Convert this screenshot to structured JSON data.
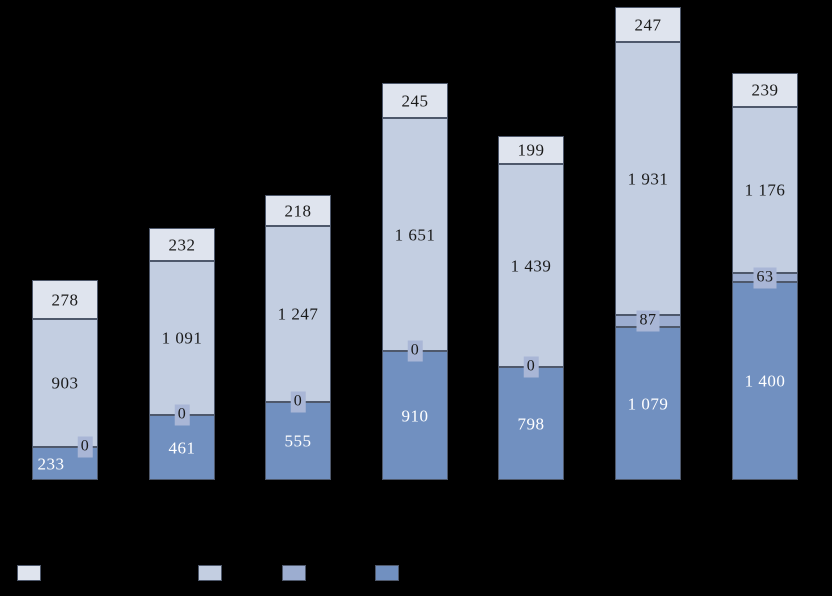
{
  "chart_data": {
    "type": "bar",
    "stacked": true,
    "orientation": "vertical",
    "title": "",
    "background_color": "#000000",
    "segment_border_color": "#4e586b",
    "bar_count": 7,
    "value_format": "space-thousands",
    "series": [
      {
        "id": "series-1-bottom",
        "color": "#7190c0",
        "label_color": "#ffffff",
        "values": [
          233,
          461,
          555,
          910,
          798,
          1079,
          1400
        ],
        "labels": [
          "233",
          "461",
          "555",
          "910",
          "798",
          "1 079",
          "1 400"
        ]
      },
      {
        "id": "series-2-thin",
        "color": "#9cadd0",
        "label_color": "#1a1a1a",
        "label_bg": "#a9b6d6",
        "boxed_labels": true,
        "values": [
          0,
          0,
          0,
          0,
          0,
          87,
          63
        ],
        "labels": [
          "0",
          "0",
          "0",
          "0",
          "0",
          "87",
          "63"
        ]
      },
      {
        "id": "series-3-light",
        "color": "#c3cee1",
        "label_color": "#1a1a1a",
        "values": [
          903,
          1091,
          1247,
          1651,
          1439,
          1931,
          1176
        ],
        "labels": [
          "903",
          "1 091",
          "1 247",
          "1 651",
          "1 439",
          "1 931",
          "1 176"
        ]
      },
      {
        "id": "series-4-top",
        "color": "#dfe4ee",
        "label_color": "#1a1a1a",
        "values": [
          278,
          232,
          218,
          245,
          199,
          247,
          239
        ],
        "labels": [
          "278",
          "232",
          "218",
          "245",
          "199",
          "247",
          "239"
        ]
      }
    ],
    "legend": {
      "position": "bottom",
      "labels_visible": false,
      "swatch_colors": [
        "#dfe4ee",
        "#c3cee1",
        "#9cadd0",
        "#7190c0"
      ]
    },
    "axes": {
      "tick_labels_visible": false,
      "gridlines_visible": false
    }
  }
}
